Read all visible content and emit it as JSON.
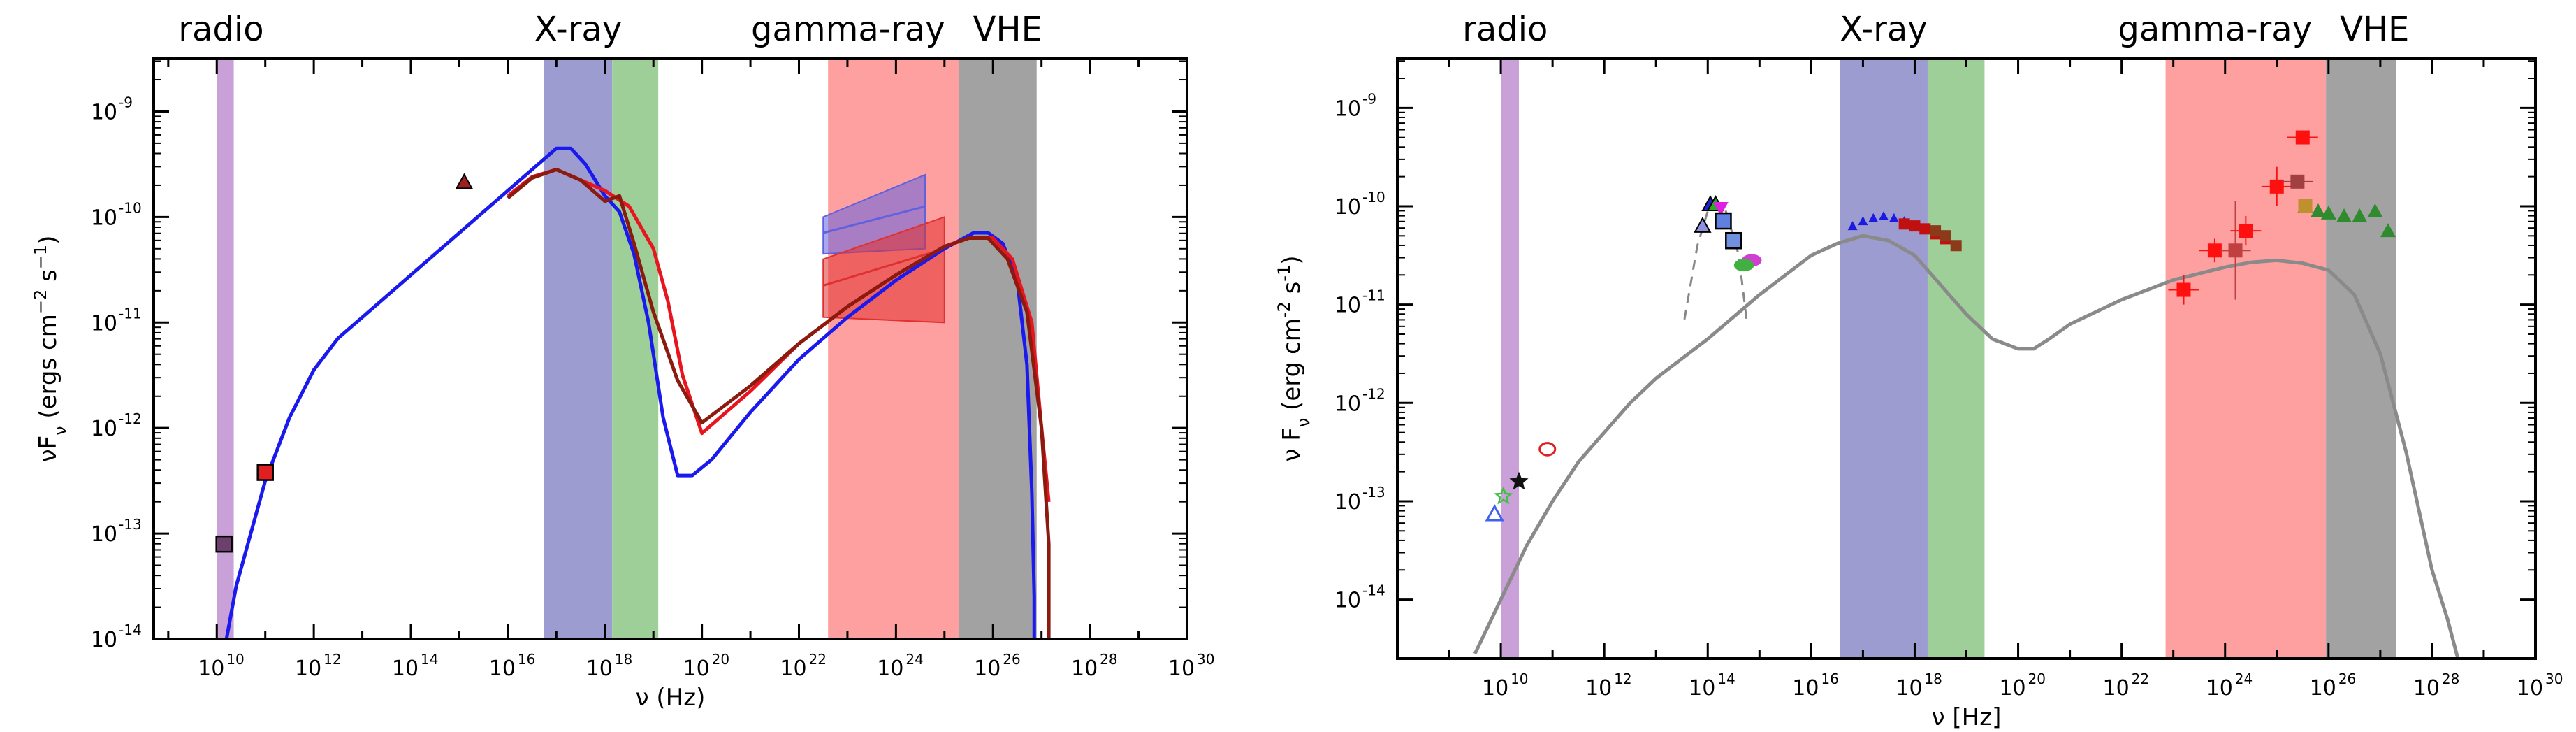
{
  "chart_data": [
    {
      "type": "line",
      "panel": "left",
      "xlabel": "ν (Hz)",
      "ylabel_main": "νF",
      "ylabel_sub": "ν",
      "ylabel_paren": " (ergs cm",
      "ylabel_exp1": "−2",
      "ylabel_mid": " s",
      "ylabel_exp2": "−1",
      "ylabel_end": ")",
      "xscale": "log",
      "yscale": "log",
      "xlim_log10": [
        8.7,
        30
      ],
      "ylim_log10": [
        -14,
        -8.5
      ],
      "x_ticks": [
        {
          "exp": 10,
          "label": "10"
        },
        {
          "exp": 12,
          "label": "10"
        },
        {
          "exp": 14,
          "label": "10"
        },
        {
          "exp": 16,
          "label": "10"
        },
        {
          "exp": 18,
          "label": "10"
        },
        {
          "exp": 20,
          "label": "10"
        },
        {
          "exp": 22,
          "label": "10"
        },
        {
          "exp": 24,
          "label": "10"
        },
        {
          "exp": 26,
          "label": "10"
        },
        {
          "exp": 28,
          "label": "10"
        },
        {
          "exp": 30,
          "label": "10"
        }
      ],
      "x_tick_exps": [
        "10",
        "12",
        "14",
        "16",
        "18",
        "20",
        "22",
        "24",
        "26",
        "28",
        "30"
      ],
      "y_ticks": [
        {
          "exp": -14,
          "label": "10"
        },
        {
          "exp": -13,
          "label": "10"
        },
        {
          "exp": -12,
          "label": "10"
        },
        {
          "exp": -11,
          "label": "10"
        },
        {
          "exp": -10,
          "label": "10"
        },
        {
          "exp": -9,
          "label": "10"
        }
      ],
      "y_tick_exps": [
        "-14",
        "-13",
        "-12",
        "-11",
        "-10",
        "-9"
      ],
      "bands": [
        {
          "name": "radio",
          "label": "radio",
          "from": 10.0,
          "to": 10.35,
          "color": "#c9a0d8"
        },
        {
          "name": "xray-soft",
          "label": "X-ray",
          "from": 16.75,
          "to": 18.15,
          "color": "#9c9cd0"
        },
        {
          "name": "xray-hard",
          "label": "",
          "from": 18.15,
          "to": 19.1,
          "color": "#9ecf98"
        },
        {
          "name": "gamma-ray",
          "label": "gamma-ray",
          "from": 22.6,
          "to": 25.3,
          "color": "#ffa0a0"
        },
        {
          "name": "vhe",
          "label": "VHE",
          "from": 25.3,
          "to": 26.9,
          "color": "#a2a2a2"
        }
      ],
      "series": [
        {
          "name": "blue model",
          "color": "#1a1aee",
          "x": [
            10.2,
            10.4,
            10.7,
            11.0,
            11.5,
            12.0,
            12.5,
            13.0,
            14.0,
            15.0,
            16.0,
            16.5,
            17.0,
            17.3,
            17.6,
            18.0,
            18.3,
            18.6,
            18.9,
            19.2,
            19.5,
            19.8,
            20.2,
            21.0,
            22.0,
            23.0,
            24.0,
            25.0,
            25.6,
            25.9,
            26.2,
            26.5,
            26.7,
            26.8,
            26.85,
            26.85
          ],
          "y": [
            -14.0,
            -13.5,
            -13.0,
            -12.5,
            -11.9,
            -11.45,
            -11.15,
            -10.95,
            -10.55,
            -10.15,
            -9.75,
            -9.55,
            -9.35,
            -9.35,
            -9.5,
            -9.8,
            -9.95,
            -10.35,
            -11.0,
            -11.9,
            -12.45,
            -12.45,
            -12.3,
            -11.85,
            -11.35,
            -10.95,
            -10.6,
            -10.3,
            -10.15,
            -10.15,
            -10.25,
            -10.6,
            -11.4,
            -12.6,
            -13.6,
            -14.0
          ]
        },
        {
          "name": "red model",
          "color": "#e8141e",
          "x": [
            16.0,
            16.5,
            17.0,
            17.5,
            18.0,
            18.5,
            19.0,
            19.3,
            19.6,
            20.0,
            20.5,
            21.0,
            22.0,
            23.0,
            24.0,
            25.0,
            25.5,
            26.0,
            26.4,
            26.8,
            27.0,
            27.15
          ],
          "y": [
            -9.8,
            -9.62,
            -9.55,
            -9.65,
            -9.75,
            -9.9,
            -10.3,
            -10.8,
            -11.5,
            -12.05,
            -11.85,
            -11.65,
            -11.2,
            -10.85,
            -10.55,
            -10.28,
            -10.2,
            -10.2,
            -10.4,
            -11.0,
            -12.0,
            -12.7
          ]
        },
        {
          "name": "dark red model",
          "color": "#8b1a0f",
          "x": [
            16.0,
            16.5,
            17.0,
            17.5,
            18.0,
            18.3,
            18.6,
            19.0,
            19.5,
            20.0,
            21.0,
            22.0,
            23.0,
            24.0,
            25.0,
            25.5,
            25.9,
            26.3,
            26.7,
            27.0,
            27.15,
            27.15
          ],
          "y": [
            -9.82,
            -9.63,
            -9.55,
            -9.65,
            -9.85,
            -9.8,
            -10.25,
            -10.9,
            -11.55,
            -11.95,
            -11.6,
            -11.2,
            -10.85,
            -10.55,
            -10.28,
            -10.2,
            -10.2,
            -10.4,
            -10.9,
            -12.0,
            -13.1,
            -14.0
          ]
        }
      ],
      "points": [
        {
          "name": "radio-square",
          "x": 10.15,
          "y": -13.1,
          "marker": "square",
          "color": "#6d3f6d"
        },
        {
          "name": "mm-square",
          "x": 11.0,
          "y": -12.42,
          "marker": "square",
          "color": "#e02020"
        },
        {
          "name": "optical-triangle",
          "x": 15.1,
          "y": -9.67,
          "marker": "triangle",
          "color": "#a02020"
        }
      ],
      "gamma_butterflies": [
        {
          "name": "blue-butterfly",
          "color": "#6060e0",
          "x": [
            22.5,
            24.6
          ],
          "upper": [
            -10.0,
            -9.6
          ],
          "lower": [
            -10.35,
            -10.3
          ],
          "center": [
            -10.15,
            -9.9
          ]
        },
        {
          "name": "red-butterfly",
          "color": "#e03030",
          "x": [
            22.5,
            25.0
          ],
          "upper": [
            -10.4,
            -10.0
          ],
          "lower": [
            -10.95,
            -11.0
          ],
          "center": [
            -10.65,
            -10.3
          ]
        }
      ]
    },
    {
      "type": "scatter",
      "panel": "right",
      "xlabel": "ν [Hz]",
      "ylabel_main": "ν F",
      "ylabel_sub": "ν",
      "ylabel_paren": " (erg cm",
      "ylabel_exp1": "-2",
      "ylabel_mid": " s",
      "ylabel_exp2": "-1",
      "ylabel_end": ")",
      "xscale": "log",
      "yscale": "log",
      "xlim_log10": [
        8.0,
        30
      ],
      "ylim_log10": [
        -14.6,
        -8.5
      ],
      "x_ticks": [
        {
          "exp": 10,
          "label": "10"
        },
        {
          "exp": 12,
          "label": "10"
        },
        {
          "exp": 14,
          "label": "10"
        },
        {
          "exp": 16,
          "label": "10"
        },
        {
          "exp": 18,
          "label": "10"
        },
        {
          "exp": 20,
          "label": "10"
        },
        {
          "exp": 22,
          "label": "10"
        },
        {
          "exp": 24,
          "label": "10"
        },
        {
          "exp": 26,
          "label": "10"
        },
        {
          "exp": 28,
          "label": "10"
        },
        {
          "exp": 30,
          "label": "10"
        }
      ],
      "x_tick_exps": [
        "10",
        "12",
        "14",
        "16",
        "18",
        "20",
        "22",
        "24",
        "26",
        "28",
        "30"
      ],
      "y_ticks": [
        {
          "exp": -14,
          "label": "10"
        },
        {
          "exp": -13,
          "label": "10"
        },
        {
          "exp": -12,
          "label": "10"
        },
        {
          "exp": -11,
          "label": "10"
        },
        {
          "exp": -10,
          "label": "10"
        },
        {
          "exp": -9,
          "label": "10"
        }
      ],
      "y_tick_exps": [
        "-14",
        "-13",
        "-12",
        "-11",
        "-10",
        "-9"
      ],
      "bands": [
        {
          "name": "radio",
          "label": "radio",
          "from": 10.0,
          "to": 10.35,
          "color": "#c9a0d8"
        },
        {
          "name": "xray-soft",
          "label": "X-ray",
          "from": 16.55,
          "to": 18.25,
          "color": "#9c9cd0"
        },
        {
          "name": "xray-hard",
          "label": "",
          "from": 18.25,
          "to": 19.35,
          "color": "#9ecf98"
        },
        {
          "name": "gamma-ray",
          "label": "gamma-ray",
          "from": 22.85,
          "to": 25.95,
          "color": "#ffa0a0"
        },
        {
          "name": "vhe",
          "label": "VHE",
          "from": 25.95,
          "to": 27.3,
          "color": "#a2a2a2"
        }
      ],
      "series": [
        {
          "name": "grey model",
          "color": "#8a8a8a",
          "x": [
            9.5,
            10.0,
            10.5,
            11.0,
            11.5,
            12.0,
            12.5,
            13.0,
            14.0,
            15.0,
            16.0,
            16.5,
            17.0,
            17.5,
            18.0,
            18.5,
            19.0,
            19.5,
            20.0,
            20.3,
            20.6,
            21.0,
            22.0,
            23.0,
            24.0,
            24.5,
            25.0,
            25.5,
            26.0,
            26.5,
            27.0,
            27.5,
            28.0,
            28.3,
            28.5
          ],
          "y": [
            -14.55,
            -14.0,
            -13.45,
            -13.0,
            -12.6,
            -12.3,
            -12.0,
            -11.75,
            -11.35,
            -10.9,
            -10.5,
            -10.38,
            -10.3,
            -10.35,
            -10.5,
            -10.8,
            -11.1,
            -11.35,
            -11.45,
            -11.45,
            -11.35,
            -11.2,
            -10.95,
            -10.75,
            -10.62,
            -10.57,
            -10.55,
            -10.58,
            -10.65,
            -10.9,
            -11.5,
            -12.5,
            -13.7,
            -14.2,
            -14.6
          ]
        },
        {
          "name": "optical dashed model",
          "color": "#888888",
          "dashed": true,
          "x": [
            13.55,
            13.8,
            14.0,
            14.2,
            14.35,
            14.6,
            14.75
          ],
          "y": [
            -11.15,
            -10.4,
            -10.05,
            -9.97,
            -10.05,
            -10.5,
            -11.15
          ]
        }
      ],
      "points": [
        {
          "name": "radio-open-triangle",
          "x": 9.88,
          "y": -13.13,
          "marker": "open-triangle",
          "color": "#4060f0"
        },
        {
          "name": "radio-open-star-green",
          "x": 10.05,
          "y": -12.95,
          "marker": "open-star",
          "color": "#40c040"
        },
        {
          "name": "radio-star-black",
          "x": 10.35,
          "y": -12.8,
          "marker": "star",
          "color": "#111111"
        },
        {
          "name": "mm-open-circle",
          "x": 10.9,
          "y": -12.47,
          "marker": "open-circle",
          "color": "#e02020"
        },
        {
          "name": "optical-triangle-1",
          "x": 14.05,
          "y": -9.98,
          "marker": "triangle",
          "color": "#2020d0"
        },
        {
          "name": "optical-triangle-2",
          "x": 14.15,
          "y": -9.98,
          "marker": "triangle",
          "color": "#20b020"
        },
        {
          "name": "optical-triangle-3",
          "x": 14.25,
          "y": -10.02,
          "marker": "triangle-down",
          "color": "#e020e0"
        },
        {
          "name": "optical-triangle-4",
          "x": 13.9,
          "y": -10.2,
          "marker": "triangle",
          "color": "#9090e0"
        },
        {
          "name": "optical-square-1",
          "x": 14.3,
          "y": -10.15,
          "marker": "square",
          "color": "#6080e0"
        },
        {
          "name": "optical-square-2",
          "x": 14.5,
          "y": -10.35,
          "marker": "square",
          "color": "#7090e0"
        },
        {
          "name": "uv-oval-1",
          "x": 14.85,
          "y": -10.55,
          "marker": "circle",
          "color": "#d040d0"
        },
        {
          "name": "uv-oval-2",
          "x": 14.7,
          "y": -10.6,
          "marker": "circle",
          "color": "#40b040"
        }
      ],
      "xray_points": {
        "blue": {
          "x": [
            16.8,
            17.0,
            17.2,
            17.4,
            17.6,
            17.8
          ],
          "y": [
            -10.2,
            -10.15,
            -10.12,
            -10.1,
            -10.12,
            -10.15
          ]
        },
        "red": {
          "x": [
            17.8,
            18.0,
            18.2,
            18.4,
            18.6
          ],
          "y": [
            -10.18,
            -10.2,
            -10.23,
            -10.28,
            -10.33
          ]
        },
        "brown": {
          "x": [
            18.4,
            18.6,
            18.8
          ],
          "y": [
            -10.25,
            -10.3,
            -10.4
          ]
        }
      },
      "gamma_points": [
        {
          "x": 23.2,
          "y": -10.85,
          "color": "#ff1010",
          "err": 0.15
        },
        {
          "x": 23.8,
          "y": -10.45,
          "color": "#ff1010",
          "err": 0.12
        },
        {
          "x": 24.2,
          "y": -10.45,
          "color": "#c04040",
          "err": 0.5
        },
        {
          "x": 24.4,
          "y": -10.25,
          "color": "#ff1010",
          "err": 0.15
        },
        {
          "x": 25.0,
          "y": -9.8,
          "color": "#ff1010",
          "err": 0.2
        },
        {
          "x": 25.4,
          "y": -9.75,
          "color": "#a04040",
          "err": 0.0
        },
        {
          "x": 25.5,
          "y": -9.3,
          "color": "#ff1010",
          "err": 0.0
        }
      ],
      "vhe_points": {
        "x": [
          25.55,
          25.8,
          26.0,
          26.3,
          26.6,
          26.9,
          27.15
        ],
        "y": [
          -10.0,
          -10.05,
          -10.07,
          -10.1,
          -10.1,
          -10.05,
          -10.25
        ],
        "color": "#2e8b2e",
        "tan": {
          "x": 25.55,
          "y": -10.0
        }
      }
    }
  ]
}
